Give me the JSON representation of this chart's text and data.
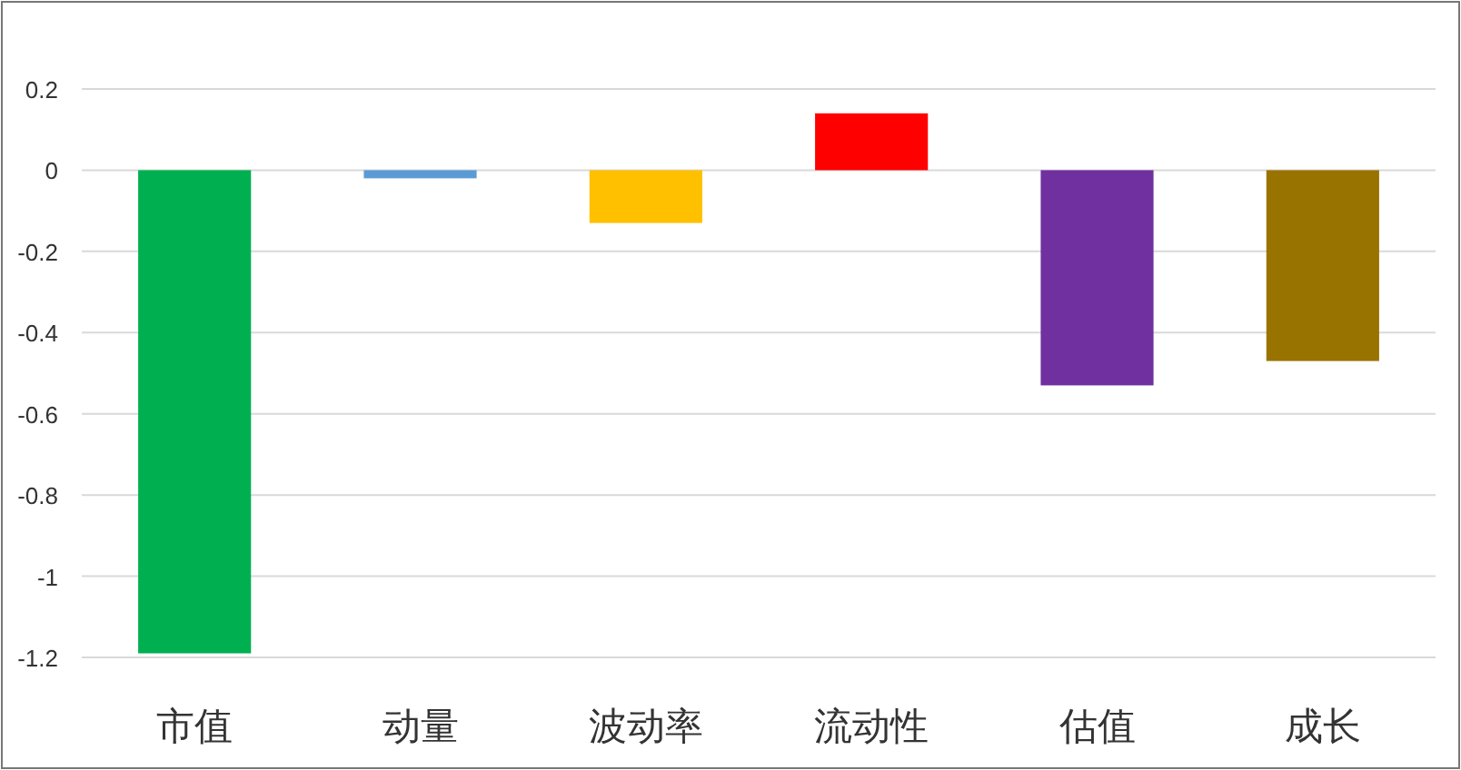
{
  "chart_data": {
    "type": "bar",
    "categories": [
      "市值",
      "动量",
      "波动率",
      "流动性",
      "估值",
      "成长"
    ],
    "values": [
      -1.19,
      -0.02,
      -0.13,
      0.14,
      -0.53,
      -0.47
    ],
    "colors": [
      "#00b050",
      "#5b9bd5",
      "#ffc000",
      "#ff0000",
      "#7030a0",
      "#997300"
    ],
    "ylim": [
      -1.2,
      0.2
    ],
    "yticks": [
      -1.2,
      -1,
      -0.8,
      -0.6,
      -0.4,
      -0.2,
      0,
      0.2
    ],
    "grid": "y"
  }
}
